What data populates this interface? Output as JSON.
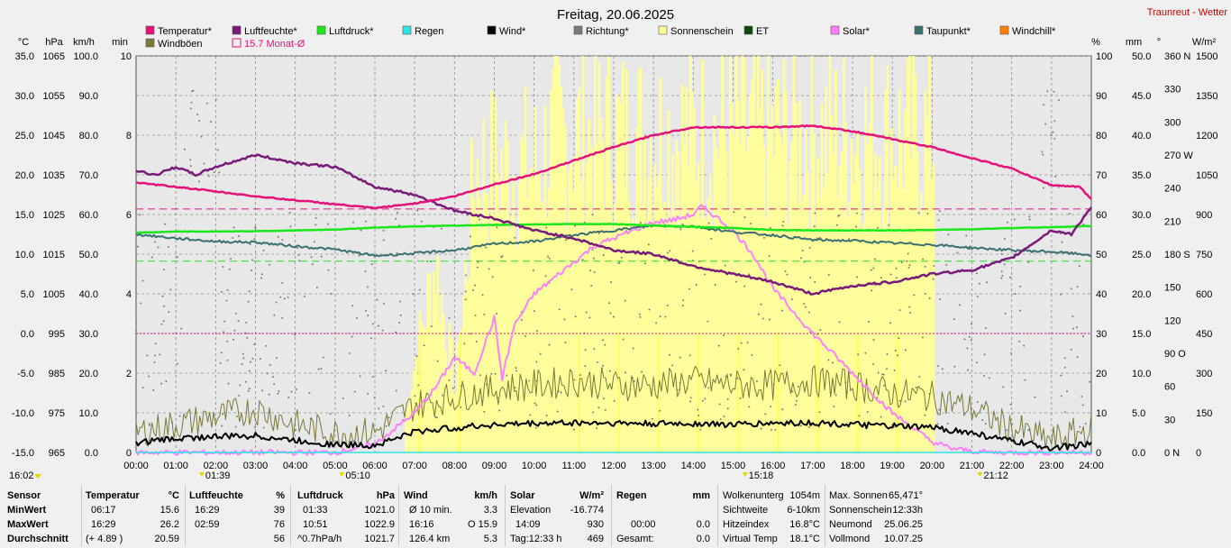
{
  "header": {
    "title": "Freitag, 20.06.2025",
    "site_link": "Traunreut - Wetter"
  },
  "legend": [
    {
      "label": "Temperatur*",
      "color": "#e6117a"
    },
    {
      "label": "Luftfeuchte*",
      "color": "#7a1a7a"
    },
    {
      "label": "Luftdruck*",
      "color": "#1be81b"
    },
    {
      "label": "Regen",
      "color": "#2ee5e5"
    },
    {
      "label": "Wind*",
      "color": "#000000"
    },
    {
      "label": "Richtung*",
      "color": "#7a7a7a"
    },
    {
      "label": "Sonnenschein",
      "color": "#ffff99"
    },
    {
      "label": "ET",
      "color": "#0a4a0a"
    },
    {
      "label": "Solar*",
      "color": "#ff80ff"
    },
    {
      "label": "Taupunkt*",
      "color": "#3a7070"
    },
    {
      "label": "Windchill*",
      "color": "#ff8000"
    },
    {
      "label": "Windböen",
      "color": "#7a7a3a"
    },
    {
      "label": "15.7 Monat-Ø",
      "color": "#e6117a",
      "outline": true
    }
  ],
  "chart_data": {
    "type": "line",
    "x": [
      "00:00",
      "01:00",
      "02:00",
      "03:00",
      "04:00",
      "05:00",
      "06:00",
      "07:00",
      "08:00",
      "09:00",
      "10:00",
      "11:00",
      "12:00",
      "13:00",
      "14:00",
      "15:00",
      "16:00",
      "17:00",
      "18:00",
      "19:00",
      "20:00",
      "21:00",
      "22:00",
      "23:00",
      "24:00"
    ],
    "xlim": [
      "00:00",
      "24:00"
    ],
    "axes": {
      "temperature": {
        "unit": "°C",
        "range": [
          -15,
          35
        ],
        "ticks": [
          "35.0",
          "30.0",
          "25.0",
          "20.0",
          "15.0",
          "10.0",
          "5.0",
          "0.0",
          "-5.0",
          "-10.0",
          "-15.0"
        ]
      },
      "pressure": {
        "unit": "hPa",
        "range": [
          965,
          1065
        ],
        "ticks": [
          "1065",
          "1055",
          "1045",
          "1035",
          "1025",
          "1015",
          "1005",
          "995",
          "985",
          "975",
          "965"
        ]
      },
      "wind": {
        "unit": "km/h",
        "range": [
          0,
          100
        ],
        "ticks": [
          "100.0",
          "90.0",
          "80.0",
          "70.0",
          "60.0",
          "50.0",
          "40.0",
          "30.0",
          "20.0",
          "10.0",
          "0.0"
        ]
      },
      "sunshine": {
        "unit": "min",
        "range": [
          0,
          10
        ],
        "ticks": [
          "10",
          "8",
          "6",
          "4",
          "2",
          "0"
        ]
      },
      "humidity": {
        "unit": "%",
        "range": [
          0,
          100
        ],
        "ticks": [
          "100",
          "90",
          "80",
          "70",
          "60",
          "50",
          "40",
          "30",
          "20",
          "10",
          "0"
        ]
      },
      "rain": {
        "unit": "mm",
        "range": [
          0,
          50
        ],
        "ticks": [
          "50.0",
          "45.0",
          "40.0",
          "35.0",
          "30.0",
          "25.0",
          "20.0",
          "15.0",
          "10.0",
          "5.0",
          "0.0"
        ]
      },
      "direction": {
        "unit": "°",
        "range": [
          0,
          360
        ],
        "ticks": [
          "360 N",
          "330",
          "300",
          "270 W",
          "240",
          "210",
          "180 S",
          "150",
          "120",
          "90 O",
          "60",
          "30",
          "0 N"
        ]
      },
      "solar": {
        "unit": "W/m²",
        "range": [
          0,
          1500
        ],
        "ticks": [
          "1500",
          "1350",
          "1200",
          "1050",
          "900",
          "750",
          "600",
          "450",
          "300",
          "150",
          "0"
        ]
      }
    },
    "reference_lines": [
      {
        "name": "15.7 Monat-Ø",
        "axis": "temperature",
        "value": 15.7
      },
      {
        "axis": "pressure",
        "value": 1013.25
      },
      {
        "axis": "temperature",
        "value": 0.0
      }
    ],
    "series": [
      {
        "name": "Temperatur*",
        "axis": "temperature",
        "color": "#e6117a",
        "x": [
          0,
          1,
          2,
          3,
          4,
          5,
          6,
          7,
          8,
          9,
          10,
          11,
          12,
          13,
          14,
          15,
          16,
          17,
          18,
          19,
          20,
          21,
          22,
          23,
          23.7,
          24
        ],
        "values": [
          19.0,
          18.5,
          17.9,
          17.3,
          16.8,
          16.3,
          15.8,
          16.4,
          17.3,
          18.8,
          20.1,
          21.8,
          23.5,
          25.0,
          26.0,
          26.0,
          26.0,
          26.2,
          25.5,
          24.5,
          23.5,
          22.1,
          20.8,
          18.7,
          18.5,
          16.9
        ]
      },
      {
        "name": "Luftfeuchte*",
        "axis": "humidity",
        "color": "#7a1a7a",
        "x": [
          0,
          0.5,
          1,
          1.5,
          2,
          3,
          4,
          5,
          6,
          7,
          8,
          9,
          10,
          11,
          12,
          13,
          14,
          15,
          16,
          17,
          18,
          19,
          20,
          21,
          22,
          23,
          23.5,
          24
        ],
        "values": [
          71,
          70,
          72,
          70,
          72,
          75,
          73,
          72,
          67,
          65,
          61,
          59,
          56,
          54,
          51,
          50,
          47,
          45,
          43,
          40,
          42,
          43,
          45,
          46,
          49,
          56,
          55,
          62
        ]
      },
      {
        "name": "Luftdruck*",
        "axis": "pressure",
        "color": "#1be81b",
        "x": [
          0,
          1,
          2,
          3,
          4,
          5,
          6,
          7,
          8,
          9,
          10,
          11,
          12,
          13,
          14,
          15,
          16,
          17,
          18,
          19,
          20,
          21,
          22,
          23,
          24
        ],
        "values": [
          1020.4,
          1020.7,
          1020.7,
          1020.8,
          1021.0,
          1021.2,
          1021.7,
          1022.0,
          1022.2,
          1022.4,
          1022.5,
          1022.6,
          1022.6,
          1022.2,
          1021.9,
          1021.6,
          1021.1,
          1021.0,
          1021.0,
          1021.0,
          1021.1,
          1021.3,
          1021.6,
          1021.8,
          1022.1
        ]
      },
      {
        "name": "Taupunkt*",
        "axis": "temperature",
        "color": "#3a7070",
        "x": [
          0,
          1,
          2,
          3,
          4,
          5,
          6,
          7,
          8,
          9,
          10,
          11,
          12,
          13,
          14,
          15,
          16,
          17,
          18,
          19,
          20,
          21,
          22,
          23,
          24
        ],
        "values": [
          12.5,
          12.0,
          11.6,
          11.5,
          11.0,
          10.6,
          9.8,
          10.1,
          10.5,
          11.3,
          11.6,
          12.4,
          13.0,
          13.6,
          13.5,
          12.8,
          12.4,
          11.8,
          11.7,
          11.4,
          11.2,
          10.8,
          10.5,
          10.3,
          9.9
        ]
      },
      {
        "name": "Wind*",
        "axis": "wind",
        "color": "#000000",
        "x": [
          0,
          1,
          2,
          3,
          4,
          5,
          6,
          7,
          8,
          9,
          10,
          11,
          12,
          13,
          14,
          15,
          16,
          17,
          18,
          19,
          20,
          21,
          22,
          23,
          24
        ],
        "values": [
          2.5,
          3.5,
          4.0,
          4.2,
          3.0,
          2.0,
          1.8,
          5.2,
          6.2,
          7.0,
          7.3,
          7.5,
          7.4,
          7.2,
          7.3,
          7.0,
          7.4,
          7.5,
          7.0,
          6.6,
          6.3,
          4.9,
          2.8,
          1.2,
          2.0
        ]
      },
      {
        "name": "Windböen",
        "axis": "wind",
        "color": "#7a7a3a",
        "x": [
          0,
          1,
          2,
          3,
          4,
          5,
          6,
          7,
          8,
          9,
          10,
          11,
          12,
          13,
          14,
          15,
          16,
          17,
          18,
          19,
          20,
          21,
          22,
          23,
          24
        ],
        "values": [
          5,
          7,
          9,
          11,
          7,
          5,
          5,
          12,
          14,
          16,
          17,
          18,
          17,
          17,
          18,
          17,
          17,
          18,
          17,
          15,
          14,
          11,
          6,
          3,
          6
        ]
      },
      {
        "name": "Solar*",
        "axis": "solar",
        "color": "#ff80ff",
        "x": [
          0,
          5,
          6,
          6.5,
          7,
          7.5,
          8,
          8.5,
          9,
          9.2,
          9.5,
          10,
          10.5,
          11,
          11.5,
          12,
          12.5,
          13,
          13.5,
          14,
          14.2,
          14.5,
          15,
          15.5,
          16,
          17,
          18,
          19,
          20,
          20.5,
          21,
          21.5,
          24
        ],
        "values": [
          0,
          0,
          30,
          90,
          150,
          240,
          360,
          300,
          510,
          280,
          480,
          600,
          660,
          720,
          780,
          810,
          840,
          870,
          880,
          900,
          930,
          900,
          840,
          750,
          620,
          450,
          300,
          150,
          40,
          15,
          5,
          0,
          0
        ]
      },
      {
        "name": "Regen",
        "axis": "rain",
        "color": "#2ee5e5",
        "x": [
          0,
          24
        ],
        "values": [
          0,
          0
        ]
      }
    ],
    "sunshine_minutes": {
      "name": "Sonnenschein",
      "axis": "sunshine",
      "color": "#ffff99",
      "x": [
        6.7,
        7,
        7.5,
        8,
        8.5,
        9,
        9.5,
        10,
        10.5,
        11,
        11.5,
        12,
        12.5,
        13,
        13.5,
        14,
        14.5,
        15,
        15.5,
        16,
        16.5,
        17,
        17.5,
        18,
        18.5,
        19,
        19.5,
        20
      ],
      "values": [
        1,
        3,
        6,
        2,
        9,
        9,
        9,
        9,
        10,
        10,
        10,
        10,
        10,
        10,
        10,
        10,
        10,
        10,
        10,
        10,
        10,
        10,
        10,
        10,
        10,
        10,
        10,
        10
      ]
    },
    "direction_scatter": {
      "name": "Richtung*",
      "axis": "direction",
      "color": "#7a7a7a"
    },
    "time_markers": [
      {
        "label": "01:39",
        "hour": 1.65
      },
      {
        "label": "05:10",
        "hour": 5.17
      },
      {
        "label": "15:18",
        "hour": 15.3
      },
      {
        "label": "21:12",
        "hour": 21.2
      }
    ],
    "corner_time": "16:02"
  },
  "table": {
    "sensor": {
      "header": "Sensor",
      "rows": [
        "MinWert",
        "MaxWert",
        "Durchschnitt"
      ]
    },
    "temperatur": {
      "header": "Temperatur",
      "unit": "°C",
      "rows": [
        [
          "06:17",
          "15.6"
        ],
        [
          "16:29",
          "26.2"
        ],
        [
          "(+ 4.89 )",
          "20.59"
        ]
      ]
    },
    "luftfeuchte": {
      "header": "Luftfeuchte",
      "unit": "%",
      "rows": [
        [
          "16:29",
          "39"
        ],
        [
          "02:59",
          "76"
        ],
        [
          "",
          "56"
        ]
      ]
    },
    "luftdruck": {
      "header": "Luftdruck",
      "unit": "hPa",
      "rows": [
        [
          "01:33",
          "1021.0"
        ],
        [
          "10:51",
          "1022.9"
        ],
        [
          "^0.7hPa/h",
          "1021.7"
        ]
      ]
    },
    "wind": {
      "header": "Wind",
      "unit": "km/h",
      "rows": [
        [
          "Ø 10 min.",
          "3.3"
        ],
        [
          "16:16",
          "O 15.9"
        ],
        [
          "126.4 km",
          "5.3"
        ]
      ]
    },
    "solar": {
      "header": "Solar",
      "unit": "W/m²",
      "rows": [
        [
          "Elevation",
          "-16.774"
        ],
        [
          "14:09",
          "930"
        ],
        [
          "Tag:12:33 h",
          "469"
        ]
      ]
    },
    "regen": {
      "header": "Regen",
      "unit": "mm",
      "rows": [
        [
          "",
          ""
        ],
        [
          "00:00",
          "0.0"
        ],
        [
          "Gesamt:",
          "0.0"
        ]
      ]
    },
    "wolken": {
      "rows": [
        [
          "Wolkenunterg",
          "1054m"
        ],
        [
          "Sichtweite",
          "6-10km"
        ],
        [
          "Hitzeindex",
          "16.8°C"
        ],
        [
          "Virtual Temp",
          "18.1°C"
        ]
      ]
    },
    "sonne": {
      "rows": [
        [
          "Max. Sonnen",
          "65,471°"
        ],
        [
          "Sonnenschein",
          "12:33h"
        ],
        [
          "Neumond",
          "25.06.25"
        ],
        [
          "Vollmond",
          "10.07.25"
        ]
      ]
    }
  }
}
